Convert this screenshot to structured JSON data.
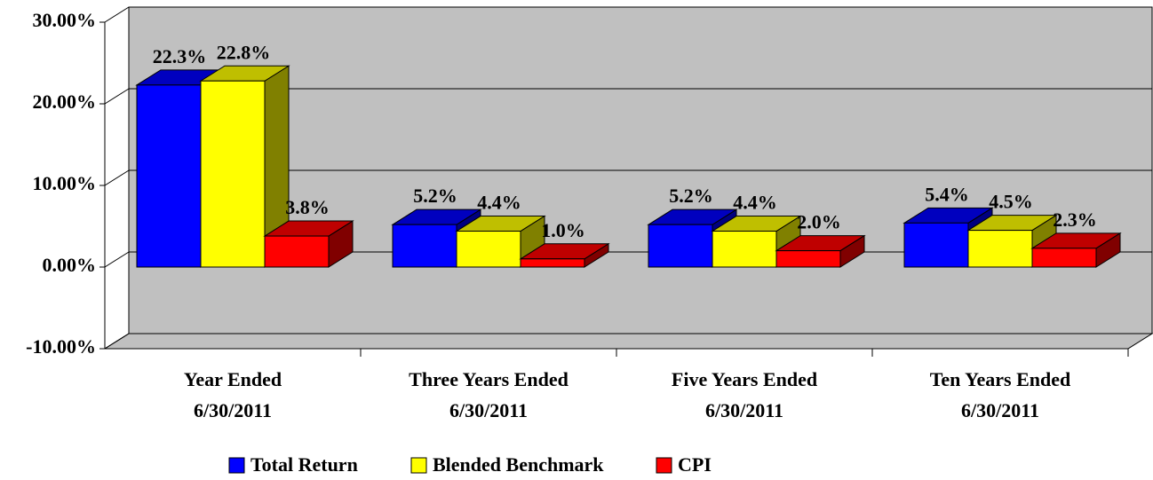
{
  "chart_data": {
    "type": "bar3d",
    "categories": [
      [
        "Year Ended",
        "6/30/2011"
      ],
      [
        "Three Years Ended",
        "6/30/2011"
      ],
      [
        "Five Years Ended",
        "6/30/2011"
      ],
      [
        "Ten Years Ended",
        "6/30/2011"
      ]
    ],
    "series": [
      {
        "name": "Total Return",
        "color": "#0000ff",
        "values": [
          22.3,
          5.2,
          5.2,
          5.4
        ],
        "value_labels": [
          "22.3%",
          "5.2%",
          "5.2%",
          "5.4%"
        ]
      },
      {
        "name": "Blended Benchmark",
        "color": "#ffff00",
        "values": [
          22.8,
          4.4,
          4.4,
          4.5
        ],
        "value_labels": [
          "22.8%",
          "4.4%",
          "4.4%",
          "4.5%"
        ]
      },
      {
        "name": "CPI",
        "color": "#ff0000",
        "values": [
          3.8,
          1.0,
          2.0,
          2.3
        ],
        "value_labels": [
          "3.8%",
          "1.0%",
          "2.0%",
          "2.3%"
        ]
      }
    ],
    "ylim": [
      -10,
      30
    ],
    "yticks": [
      {
        "value": -10,
        "label": "-10.00%"
      },
      {
        "value": 0,
        "label": "0.00%"
      },
      {
        "value": 10,
        "label": "10.00%"
      },
      {
        "value": 20,
        "label": "20.00%"
      },
      {
        "value": 30,
        "label": "30.00%"
      }
    ],
    "grid": true,
    "wall_color": "#c0c0c0",
    "legend": "bottom"
  }
}
